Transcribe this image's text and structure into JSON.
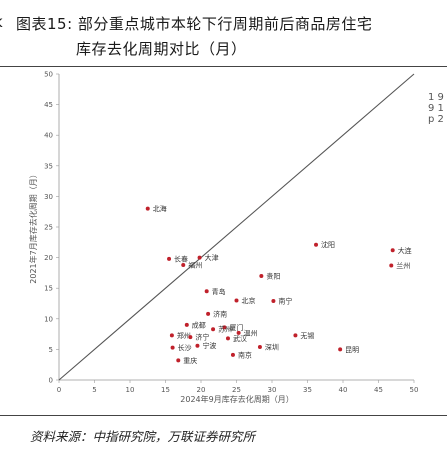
{
  "header": {
    "prefix": "k",
    "line1": "图表15:  部分重点城市本轮下行周期前后商品房住宅",
    "line2": "库存去化周期对比（月）"
  },
  "source": "资料来源：中指研究院，万联证券研究所",
  "right_edge_text": "1 9 9 1 p 2",
  "chart_data": {
    "type": "scatter",
    "title": "",
    "xlabel": "2024年9月库存去化周期（月）",
    "ylabel": "2021年7月库存去化周期（月）",
    "xlim": [
      0,
      50
    ],
    "ylim": [
      0,
      50
    ],
    "xticks": [
      0,
      5,
      10,
      15,
      20,
      25,
      30,
      35,
      40,
      45,
      50
    ],
    "yticks": [
      0,
      5,
      10,
      15,
      20,
      25,
      30,
      35,
      40,
      45,
      50
    ],
    "grid": false,
    "reference_line": {
      "from": [
        0,
        0
      ],
      "to": [
        50,
        50
      ]
    },
    "point_color": "#c0212b",
    "points": [
      {
        "label": "北海",
        "x": 12.5,
        "y": 28.0
      },
      {
        "label": "大连",
        "x": 47.0,
        "y": 21.2
      },
      {
        "label": "沈阳",
        "x": 36.2,
        "y": 22.1
      },
      {
        "label": "兰州",
        "x": 46.8,
        "y": 18.7
      },
      {
        "label": "长春",
        "x": 15.5,
        "y": 19.8
      },
      {
        "label": "大津",
        "x": 19.8,
        "y": 20.0
      },
      {
        "label": "福州",
        "x": 17.5,
        "y": 18.8
      },
      {
        "label": "贵阳",
        "x": 28.5,
        "y": 17.0
      },
      {
        "label": "青岛",
        "x": 20.8,
        "y": 14.5
      },
      {
        "label": "北京",
        "x": 25.0,
        "y": 13.0
      },
      {
        "label": "南宁",
        "x": 30.2,
        "y": 12.9
      },
      {
        "label": "济南",
        "x": 21.0,
        "y": 10.8
      },
      {
        "label": "成都",
        "x": 18.0,
        "y": 9.0
      },
      {
        "label": "厦门",
        "x": 23.3,
        "y": 8.6
      },
      {
        "label": "苏州",
        "x": 21.7,
        "y": 8.3
      },
      {
        "label": "温州",
        "x": 25.3,
        "y": 7.7
      },
      {
        "label": "郑州",
        "x": 15.9,
        "y": 7.3
      },
      {
        "label": "无锡",
        "x": 33.3,
        "y": 7.3
      },
      {
        "label": "济宁",
        "x": 18.5,
        "y": 7.0
      },
      {
        "label": "武汉",
        "x": 23.8,
        "y": 6.8
      },
      {
        "label": "宁波",
        "x": 19.5,
        "y": 5.6
      },
      {
        "label": "长沙",
        "x": 16.0,
        "y": 5.3
      },
      {
        "label": "深圳",
        "x": 28.3,
        "y": 5.4
      },
      {
        "label": "南京",
        "x": 24.5,
        "y": 4.1
      },
      {
        "label": "昆明",
        "x": 39.6,
        "y": 5.0
      },
      {
        "label": "重庆",
        "x": 16.8,
        "y": 3.2
      }
    ]
  }
}
